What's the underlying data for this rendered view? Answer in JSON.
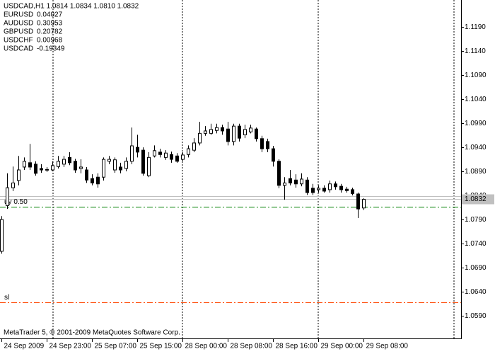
{
  "chart_data": {
    "type": "candlestick",
    "title": "USDCAD,H1  1.0814 1.0834 1.0810 1.0832",
    "footer": "MetaTrader 5, © 2001-2009 MetaQuotes Software Corp.",
    "categories": [
      "24 Sep 2009",
      null,
      null,
      null,
      null,
      null,
      null,
      null,
      "24 Sep 23:00",
      null,
      null,
      null,
      null,
      null,
      null,
      null,
      "25 Sep 07:00",
      null,
      null,
      null,
      null,
      null,
      null,
      null,
      "25 Sep 15:00",
      null,
      null,
      null,
      null,
      null,
      null,
      null,
      "28 Sep 00:00",
      null,
      null,
      null,
      null,
      null,
      null,
      null,
      "28 Sep 08:00",
      null,
      null,
      null,
      null,
      null,
      null,
      null,
      "28 Sep 16:00",
      null,
      null,
      null,
      null,
      null,
      null,
      null,
      "29 Sep 00:00",
      null,
      null,
      null,
      null,
      null,
      null,
      null,
      "29 Sep 08:00"
    ],
    "open": [
      1.0724,
      1.0819,
      1.0856,
      1.0871,
      1.0899,
      1.0908,
      1.0905,
      1.0896,
      1.0893,
      1.0893,
      1.09,
      1.0905,
      1.0919,
      1.0911,
      1.0896,
      1.0893,
      1.0875,
      1.0878,
      1.0878,
      1.0911,
      1.0893,
      1.0899,
      1.0896,
      1.0911,
      1.094,
      1.0934,
      1.0881,
      1.0922,
      1.093,
      1.0919,
      1.0925,
      1.0922,
      1.0915,
      1.0925,
      1.0934,
      1.0949,
      1.0969,
      1.0969,
      1.0975,
      1.0981,
      1.0978,
      1.0952,
      1.0984,
      1.0966,
      1.0972,
      1.0978,
      1.0958,
      1.0952,
      1.0937,
      1.0911,
      1.0861,
      1.0875,
      1.0872,
      1.0864,
      1.0872,
      1.0855,
      1.0852,
      1.0855,
      1.0852,
      1.0864,
      1.0859,
      1.0853,
      1.0852,
      1.0843,
      1.0814
    ],
    "high": [
      1.0797,
      1.0886,
      1.09,
      1.0922,
      1.0919,
      1.0947,
      1.0911,
      1.0905,
      1.0899,
      1.0911,
      1.0922,
      1.0922,
      1.093,
      1.0916,
      1.0915,
      1.0899,
      1.0884,
      1.0886,
      1.0919,
      1.0922,
      1.0919,
      1.0908,
      1.0919,
      1.0981,
      1.0966,
      1.094,
      1.093,
      1.0944,
      1.0937,
      1.0934,
      1.0931,
      1.0928,
      1.093,
      1.0944,
      1.0959,
      1.0993,
      1.0984,
      1.0989,
      1.0989,
      1.0987,
      1.0993,
      1.0989,
      1.0989,
      1.0987,
      1.0987,
      1.0981,
      1.0964,
      1.0958,
      1.0943,
      1.0915,
      1.0878,
      1.0893,
      1.0884,
      1.0886,
      1.0878,
      1.0864,
      1.0861,
      1.0861,
      1.0871,
      1.0869,
      1.0864,
      1.0858,
      1.0856,
      1.0846,
      1.0834
    ],
    "low": [
      1.0719,
      1.0812,
      1.0849,
      1.0861,
      1.0893,
      1.0893,
      1.0881,
      1.0887,
      1.0889,
      1.089,
      1.0896,
      1.0899,
      1.0903,
      1.0887,
      1.0886,
      1.0866,
      1.0861,
      1.0856,
      1.0871,
      1.0905,
      1.0887,
      1.0886,
      1.089,
      1.0905,
      1.0919,
      1.0881,
      1.0878,
      1.0919,
      1.0919,
      1.0914,
      1.0908,
      1.0908,
      1.0911,
      1.0919,
      1.093,
      1.0944,
      1.0964,
      1.0966,
      1.0969,
      1.0966,
      1.0944,
      1.0944,
      1.0952,
      1.0959,
      1.0969,
      1.0952,
      1.093,
      1.093,
      1.09,
      1.0855,
      1.0831,
      1.0861,
      1.0856,
      1.0859,
      1.0841,
      1.0841,
      1.0846,
      1.0846,
      1.0846,
      1.0852,
      1.0846,
      1.0846,
      1.084,
      1.0793,
      1.081
    ],
    "close": [
      1.079,
      1.0856,
      1.0866,
      1.0893,
      1.0911,
      1.0899,
      1.0886,
      1.0893,
      1.0894,
      1.0902,
      1.0911,
      1.0915,
      1.0908,
      1.0893,
      1.0899,
      1.0872,
      1.0866,
      1.0864,
      1.0915,
      1.0915,
      1.0914,
      1.0893,
      1.0911,
      1.0943,
      1.093,
      1.0886,
      1.0919,
      1.0933,
      1.0925,
      1.0928,
      1.0915,
      1.0911,
      1.0924,
      1.0937,
      1.0949,
      1.0969,
      1.0974,
      1.0977,
      1.0981,
      1.0974,
      1.0952,
      1.0984,
      1.0959,
      1.0977,
      1.098,
      1.0958,
      1.0937,
      1.0937,
      1.0911,
      1.0861,
      1.0866,
      1.0866,
      1.0864,
      1.0874,
      1.0846,
      1.0846,
      1.0855,
      1.0849,
      1.0864,
      1.0858,
      1.0852,
      1.085,
      1.0844,
      1.0812,
      1.0832
    ],
    "up_color": "#ffffff",
    "down_color": "#000000",
    "ylim": [
      1.0543,
      1.1246
    ],
    "yticks": [
      {
        "value": 1.119,
        "label": "1.1190"
      },
      {
        "value": 1.114,
        "label": "1.1140"
      },
      {
        "value": 1.109,
        "label": "1.1090"
      },
      {
        "value": 1.104,
        "label": "1.1040"
      },
      {
        "value": 1.099,
        "label": "1.0990"
      },
      {
        "value": 1.094,
        "label": "1.0940"
      },
      {
        "value": 1.089,
        "label": "1.0890"
      },
      {
        "value": 1.084,
        "label": "1.0840"
      },
      {
        "value": 1.079,
        "label": "1.0790"
      },
      {
        "value": 1.074,
        "label": "1.0740"
      },
      {
        "value": 1.069,
        "label": "1.0690"
      },
      {
        "value": 1.064,
        "label": "1.0640"
      },
      {
        "value": 1.059,
        "label": "1.0590"
      }
    ],
    "price_line": {
      "value": 1.0832,
      "label": "1.0832"
    },
    "levels": [
      {
        "value": 1.0816,
        "label": "uy 0.50",
        "color": "#008000"
      },
      {
        "value": 1.0618,
        "label": "sl",
        "color": "#ff4500"
      }
    ],
    "indicators": [
      {
        "name": "EURUSD",
        "value": 0.04027,
        "color": "#008000"
      },
      {
        "name": "AUDUSD",
        "value": 0.30953,
        "color": "#008000"
      },
      {
        "name": "GBPUSD",
        "value": 0.20782,
        "color": "#008000"
      },
      {
        "name": "USDCHF",
        "value": 0.00968,
        "color": "#008000"
      },
      {
        "name": "USDCAD",
        "value": -0.19349,
        "color": "#c00000"
      }
    ]
  }
}
